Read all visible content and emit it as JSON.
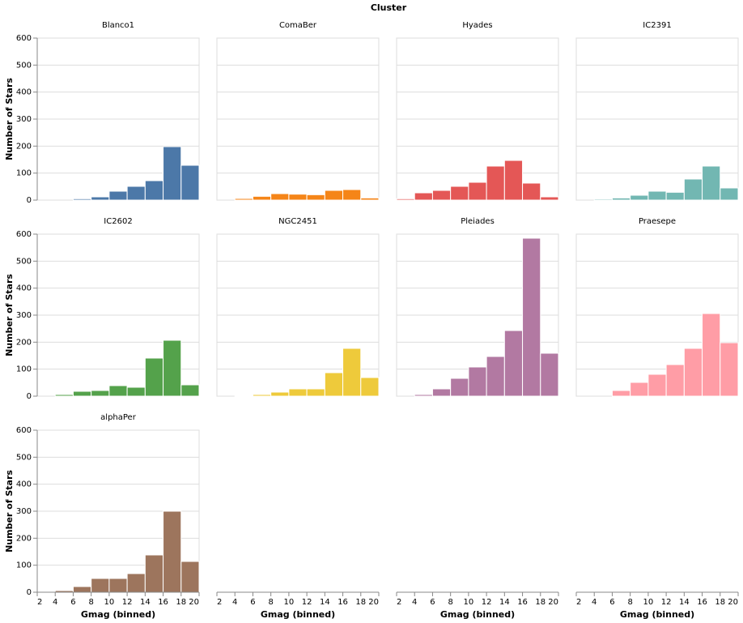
{
  "chart_data": {
    "type": "histogram",
    "title": "Cluster",
    "x_label": "Gmag (binned)",
    "y_label": "Number of Stars",
    "bins": [
      2,
      4,
      6,
      8,
      10,
      12,
      14,
      16,
      18,
      20
    ],
    "xlim": [
      2,
      20
    ],
    "xticks": [
      2,
      4,
      6,
      8,
      10,
      12,
      14,
      16,
      18,
      20
    ],
    "ylim": [
      0,
      600
    ],
    "yticks": [
      0,
      100,
      200,
      300,
      400,
      500,
      600
    ],
    "grid": true,
    "series": [
      {
        "name": "Blanco1",
        "color": "#4c78a8",
        "values": [
          0,
          0,
          5,
          12,
          33,
          51,
          72,
          198,
          129
        ]
      },
      {
        "name": "ComaBer",
        "color": "#f58518",
        "values": [
          0,
          6,
          14,
          24,
          22,
          20,
          36,
          39,
          8
        ]
      },
      {
        "name": "Hyades",
        "color": "#e45756",
        "values": [
          5,
          27,
          36,
          51,
          66,
          126,
          147,
          63,
          12
        ]
      },
      {
        "name": "IC2391",
        "color": "#72b7b2",
        "values": [
          0,
          4,
          8,
          18,
          33,
          29,
          78,
          126,
          45
        ]
      },
      {
        "name": "IC2602",
        "color": "#54a24b",
        "values": [
          0,
          6,
          18,
          21,
          39,
          33,
          141,
          207,
          42
        ]
      },
      {
        "name": "NGC2451",
        "color": "#eeca3b",
        "values": [
          0,
          3,
          6,
          15,
          27,
          27,
          87,
          177,
          69
        ]
      },
      {
        "name": "Pleiades",
        "color": "#b279a2",
        "values": [
          0,
          6,
          27,
          66,
          108,
          147,
          243,
          585,
          159
        ]
      },
      {
        "name": "Praesepe",
        "color": "#ff9da6",
        "values": [
          0,
          0,
          21,
          51,
          81,
          117,
          177,
          306,
          198
        ]
      },
      {
        "name": "alphaPer",
        "color": "#9d755d",
        "values": [
          0,
          6,
          21,
          51,
          51,
          69,
          138,
          300,
          114
        ]
      }
    ]
  }
}
